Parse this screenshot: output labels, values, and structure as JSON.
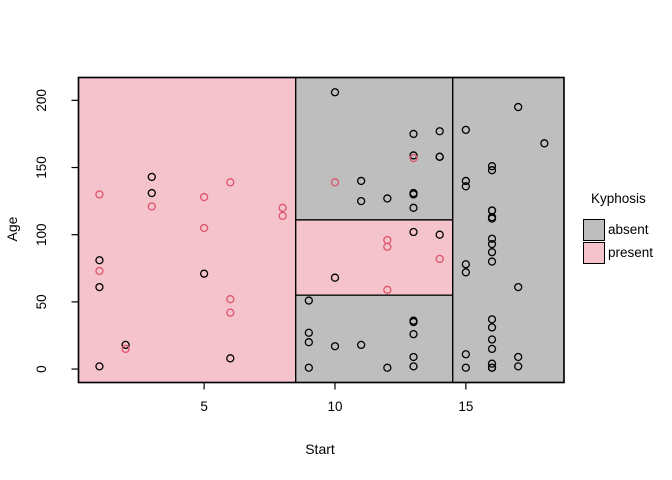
{
  "chart_data": {
    "type": "scatter",
    "title": "",
    "xlabel": "Start",
    "ylabel": "Age",
    "x_ticks": [
      5,
      10,
      15
    ],
    "y_ticks": [
      0,
      50,
      100,
      150,
      200
    ],
    "xlim": [
      0.2,
      18.75
    ],
    "ylim": [
      -10,
      217
    ],
    "grid": false,
    "marker": "open-circle",
    "legend": {
      "title": "Kyphosis",
      "position": "right-middle",
      "entries": [
        {
          "label": "absent",
          "fill": "#bebebe"
        },
        {
          "label": "present",
          "fill": "#f4c3cc"
        }
      ]
    },
    "colors": {
      "absent_region": "#bebebe",
      "present_region": "#f4c3cc",
      "absent_point": "#000000",
      "present_point": "#df536b",
      "border": "#000000",
      "background": "#ffffff"
    },
    "partition_regions": [
      {
        "class": "present",
        "x": [
          null,
          8.5
        ],
        "y": [
          null,
          null
        ]
      },
      {
        "class": "absent",
        "x": [
          8.5,
          14.5
        ],
        "y": [
          111,
          null
        ]
      },
      {
        "class": "present",
        "x": [
          8.5,
          14.5
        ],
        "y": [
          55,
          111
        ]
      },
      {
        "class": "absent",
        "x": [
          8.5,
          14.5
        ],
        "y": [
          null,
          55
        ]
      },
      {
        "class": "absent",
        "x": [
          14.5,
          null
        ],
        "y": [
          null,
          null
        ]
      }
    ],
    "series": [
      {
        "name": "absent",
        "marker_color": "#000000",
        "points": [
          [
            5,
            71
          ],
          [
            14,
            158
          ],
          [
            1,
            2
          ],
          [
            15,
            1
          ],
          [
            16,
            1
          ],
          [
            17,
            61
          ],
          [
            16,
            37
          ],
          [
            16,
            113
          ],
          [
            16,
            148
          ],
          [
            2,
            18
          ],
          [
            12,
            1
          ],
          [
            18,
            168
          ],
          [
            16,
            1
          ],
          [
            15,
            78
          ],
          [
            13,
            175
          ],
          [
            16,
            80
          ],
          [
            9,
            27
          ],
          [
            16,
            22
          ],
          [
            3,
            131
          ],
          [
            13,
            9
          ],
          [
            6,
            8
          ],
          [
            14,
            100
          ],
          [
            16,
            4
          ],
          [
            16,
            151
          ],
          [
            16,
            31
          ],
          [
            11,
            125
          ],
          [
            13,
            130
          ],
          [
            16,
            112
          ],
          [
            11,
            140
          ],
          [
            16,
            93
          ],
          [
            9,
            1
          ],
          [
            9,
            20
          ],
          [
            13,
            35
          ],
          [
            3,
            143
          ],
          [
            1,
            61
          ],
          [
            16,
            97
          ],
          [
            15,
            136
          ],
          [
            13,
            131
          ],
          [
            14,
            177
          ],
          [
            10,
            68
          ],
          [
            17,
            9
          ],
          [
            17,
            2
          ],
          [
            15,
            140
          ],
          [
            15,
            72
          ],
          [
            13,
            2
          ],
          [
            9,
            51
          ],
          [
            13,
            102
          ],
          [
            1,
            81
          ],
          [
            16,
            118
          ],
          [
            16,
            118
          ],
          [
            10,
            17
          ],
          [
            17,
            195
          ],
          [
            13,
            159
          ],
          [
            11,
            18
          ],
          [
            16,
            15
          ],
          [
            14,
            158
          ],
          [
            12,
            127
          ],
          [
            16,
            87
          ],
          [
            10,
            206
          ],
          [
            15,
            11
          ],
          [
            15,
            178
          ],
          [
            13,
            26
          ],
          [
            13,
            120
          ],
          [
            13,
            36
          ]
        ]
      },
      {
        "name": "present",
        "marker_color": "#df536b",
        "points": [
          [
            5,
            128
          ],
          [
            12,
            59
          ],
          [
            14,
            82
          ],
          [
            5,
            105
          ],
          [
            12,
            96
          ],
          [
            2,
            15
          ],
          [
            6,
            52
          ],
          [
            12,
            91
          ],
          [
            1,
            73
          ],
          [
            10,
            139
          ],
          [
            3,
            121
          ],
          [
            6,
            139
          ],
          [
            8,
            120
          ],
          [
            1,
            130
          ],
          [
            8,
            114
          ],
          [
            13,
            157
          ],
          [
            6,
            42
          ]
        ]
      }
    ]
  }
}
